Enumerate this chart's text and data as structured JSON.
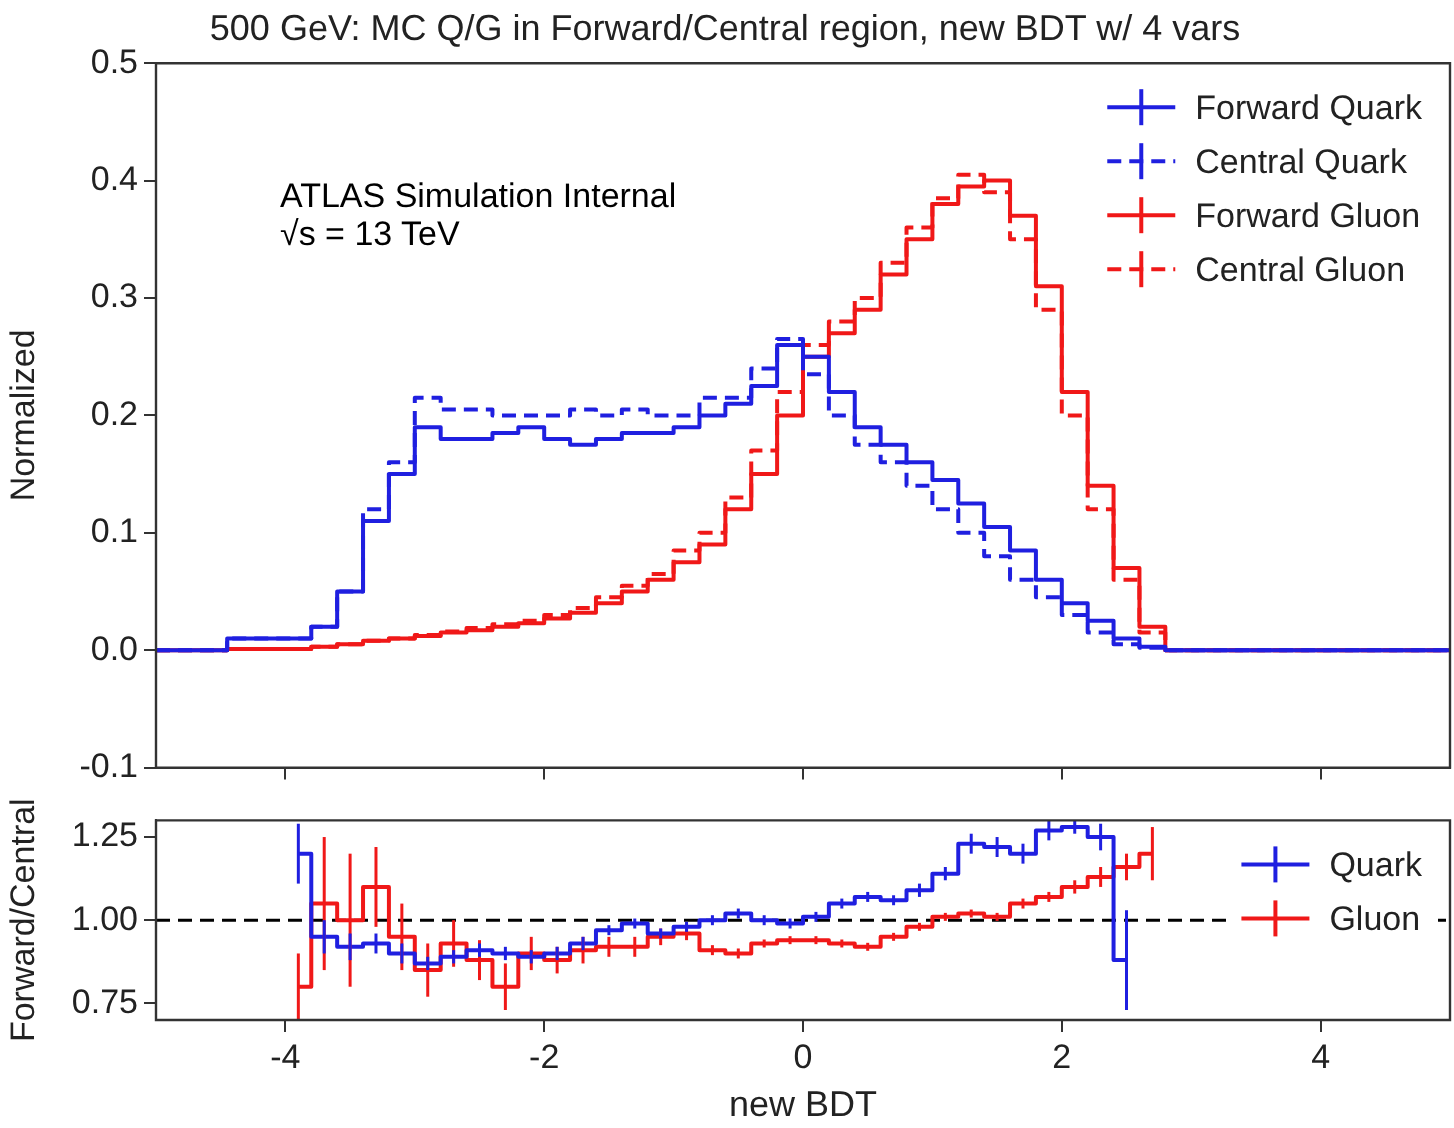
{
  "chart_data": [
    {
      "type": "step",
      "title": "500 GeV: MC Q/G in Forward/Central region, new BDT w/ 4 vars",
      "ylabel": "Normalized",
      "annotations": [
        "ATLAS Simulation Internal",
        "√s = 13 TeV"
      ],
      "x": [
        -5,
        -3.9,
        -3.7,
        -3.5,
        -3.3,
        -3.1,
        -2.9,
        -2.7,
        -2.5,
        -2.3,
        -2.1,
        -1.9,
        -1.7,
        -1.5,
        -1.3,
        -1.1,
        -0.9,
        -0.7,
        -0.5,
        -0.3,
        -0.1,
        0.1,
        0.3,
        0.5,
        0.7,
        0.9,
        1.1,
        1.3,
        1.5,
        1.7,
        1.9,
        2.1,
        2.3,
        2.5,
        2.7,
        2.9,
        5
      ],
      "series": [
        {
          "name": "Forward Quark",
          "color": "#1f1fe0",
          "line_style": "solid",
          "values": [
            0,
            0.01,
            0.02,
            0.05,
            0.11,
            0.15,
            0.19,
            0.18,
            0.18,
            0.185,
            0.19,
            0.18,
            0.175,
            0.18,
            0.185,
            0.185,
            0.19,
            0.2,
            0.21,
            0.225,
            0.26,
            0.25,
            0.22,
            0.19,
            0.175,
            0.16,
            0.145,
            0.125,
            0.105,
            0.085,
            0.06,
            0.04,
            0.025,
            0.01,
            0.003,
            0,
            0
          ]
        },
        {
          "name": "Central Quark",
          "color": "#1f1fe0",
          "line_style": "dashed",
          "values": [
            0,
            0.01,
            0.02,
            0.05,
            0.12,
            0.16,
            0.215,
            0.205,
            0.205,
            0.2,
            0.2,
            0.2,
            0.205,
            0.2,
            0.205,
            0.2,
            0.2,
            0.215,
            0.215,
            0.24,
            0.265,
            0.235,
            0.2,
            0.175,
            0.16,
            0.14,
            0.12,
            0.1,
            0.08,
            0.06,
            0.045,
            0.03,
            0.015,
            0.005,
            0.002,
            0,
            0
          ]
        },
        {
          "name": "Forward Gluon",
          "color": "#f01818",
          "line_style": "solid",
          "values": [
            0,
            0.001,
            0.003,
            0.005,
            0.008,
            0.01,
            0.012,
            0.015,
            0.017,
            0.02,
            0.023,
            0.027,
            0.032,
            0.04,
            0.05,
            0.06,
            0.075,
            0.09,
            0.12,
            0.15,
            0.2,
            0.25,
            0.27,
            0.29,
            0.32,
            0.35,
            0.38,
            0.395,
            0.4,
            0.37,
            0.31,
            0.22,
            0.14,
            0.07,
            0.02,
            0,
            0
          ]
        },
        {
          "name": "Central Gluon",
          "color": "#f01818",
          "line_style": "dashed",
          "values": [
            0,
            0.001,
            0.003,
            0.005,
            0.008,
            0.01,
            0.013,
            0.016,
            0.019,
            0.022,
            0.025,
            0.03,
            0.036,
            0.045,
            0.055,
            0.065,
            0.085,
            0.1,
            0.13,
            0.17,
            0.22,
            0.26,
            0.28,
            0.3,
            0.33,
            0.36,
            0.385,
            0.405,
            0.39,
            0.35,
            0.29,
            0.2,
            0.12,
            0.06,
            0.015,
            0,
            0
          ]
        }
      ],
      "xlim": [
        -5,
        5
      ],
      "xticks": [
        -4,
        -2,
        0,
        2,
        4
      ],
      "ylim": [
        -0.1,
        0.5
      ],
      "yticks": [
        -0.1,
        {
          "value": 0,
          "label": "0.0"
        },
        0.1,
        0.2,
        0.3,
        0.4,
        0.5
      ],
      "tick_labels": "y",
      "grid": false,
      "legend": "top right",
      "marker": "none"
    },
    {
      "type": "step",
      "xlabel": "new BDT",
      "ylabel": "Forward/Central",
      "x": [
        -3.9,
        -3.7,
        -3.5,
        -3.3,
        -3.1,
        -2.9,
        -2.7,
        -2.5,
        -2.3,
        -2.1,
        -1.9,
        -1.7,
        -1.5,
        -1.3,
        -1.1,
        -0.9,
        -0.7,
        -0.5,
        -0.3,
        -0.1,
        0.1,
        0.3,
        0.5,
        0.7,
        0.9,
        1.1,
        1.3,
        1.5,
        1.7,
        1.9,
        2.1,
        2.3,
        2.5,
        2.7
      ],
      "series": [
        {
          "name": "Quark",
          "color": "#1f1fe0",
          "values": [
            1.2,
            0.95,
            0.92,
            0.93,
            0.9,
            0.87,
            0.89,
            0.91,
            0.9,
            0.89,
            0.9,
            0.93,
            0.97,
            0.99,
            0.96,
            0.98,
            1.0,
            1.02,
            1.0,
            0.99,
            1.01,
            1.05,
            1.07,
            1.06,
            1.09,
            1.14,
            1.23,
            1.22,
            1.2,
            1.27,
            1.28,
            1.25,
            0.88,
            null
          ],
          "errors": [
            0.09,
            0.05,
            0.04,
            0.03,
            0.03,
            0.02,
            0.02,
            0.02,
            0.02,
            0.02,
            0.02,
            0.02,
            0.015,
            0.015,
            0.015,
            0.015,
            0.015,
            0.015,
            0.015,
            0.015,
            0.015,
            0.015,
            0.015,
            0.015,
            0.02,
            0.02,
            0.03,
            0.03,
            0.03,
            0.03,
            0.02,
            0.04,
            0.15,
            null
          ]
        },
        {
          "name": "Gluon",
          "color": "#f01818",
          "values": [
            0.8,
            1.05,
            1.0,
            1.1,
            0.95,
            0.85,
            0.93,
            0.88,
            0.8,
            0.9,
            0.88,
            0.91,
            0.92,
            0.92,
            0.95,
            0.96,
            0.91,
            0.9,
            0.93,
            0.94,
            0.94,
            0.93,
            0.92,
            0.95,
            0.98,
            1.01,
            1.02,
            1.01,
            1.05,
            1.07,
            1.1,
            1.13,
            1.16,
            1.2
          ],
          "errors": [
            0.1,
            0.2,
            0.2,
            0.12,
            0.1,
            0.08,
            0.07,
            0.06,
            0.07,
            0.05,
            0.04,
            0.04,
            0.03,
            0.03,
            0.025,
            0.02,
            0.015,
            0.015,
            0.012,
            0.012,
            0.012,
            0.012,
            0.012,
            0.012,
            0.012,
            0.012,
            0.012,
            0.012,
            0.015,
            0.015,
            0.02,
            0.03,
            0.04,
            0.08
          ]
        }
      ],
      "xlim": [
        -5,
        5
      ],
      "xticks": [
        -4,
        -2,
        0,
        2,
        4
      ],
      "ylim": [
        0.7,
        1.3
      ],
      "yticks": [
        0.75,
        {
          "value": 1,
          "label": "1.00"
        },
        1.25
      ],
      "ref_lines": [
        {
          "axis": "y",
          "value": 1,
          "color": "#000000",
          "line_style": "dashed"
        }
      ],
      "grid": false,
      "legend": "top right",
      "marker": "none"
    }
  ]
}
